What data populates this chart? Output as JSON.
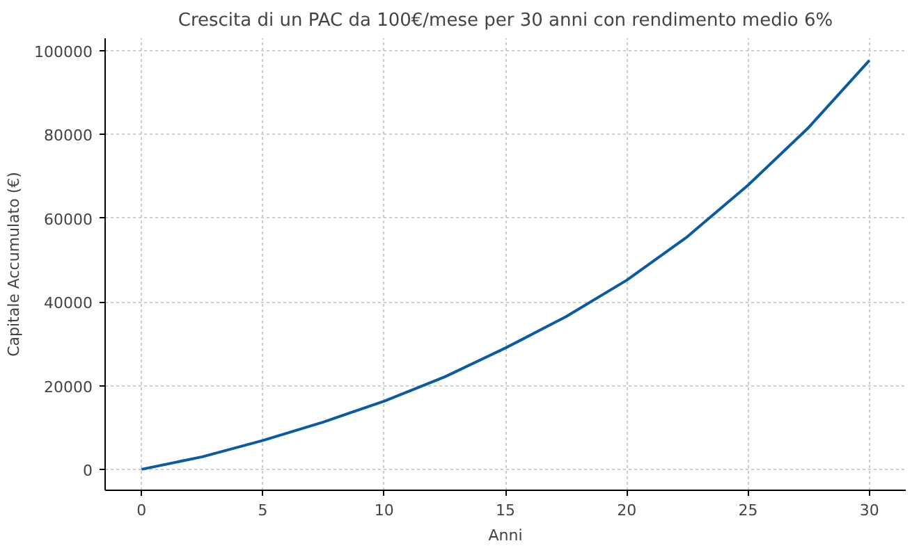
{
  "chart_data": {
    "type": "line",
    "title": "Crescita di un PAC da 100€/mese per 30 anni con rendimento medio 6%",
    "xlabel": "Anni",
    "ylabel": "Capitale Accumulato (€)",
    "x": [
      0,
      2.5,
      5,
      7.5,
      10,
      12.5,
      15,
      17.5,
      20,
      22.5,
      25,
      27.5,
      30
    ],
    "series": [
      {
        "color": "#0b5ba3",
        "values": [
          0,
          3000,
          6900,
          11300,
          16300,
          22100,
          29000,
          36500,
          45200,
          55600,
          67900,
          81700,
          97700
        ]
      }
    ],
    "xlim": [
      -1.5,
      31.5
    ],
    "ylim": [
      -5000,
      103000
    ],
    "xticks": [
      0,
      5,
      10,
      15,
      20,
      25,
      30
    ],
    "yticks": [
      0,
      20000,
      40000,
      60000,
      80000,
      100000
    ],
    "grid": true,
    "line_style": "solid"
  }
}
